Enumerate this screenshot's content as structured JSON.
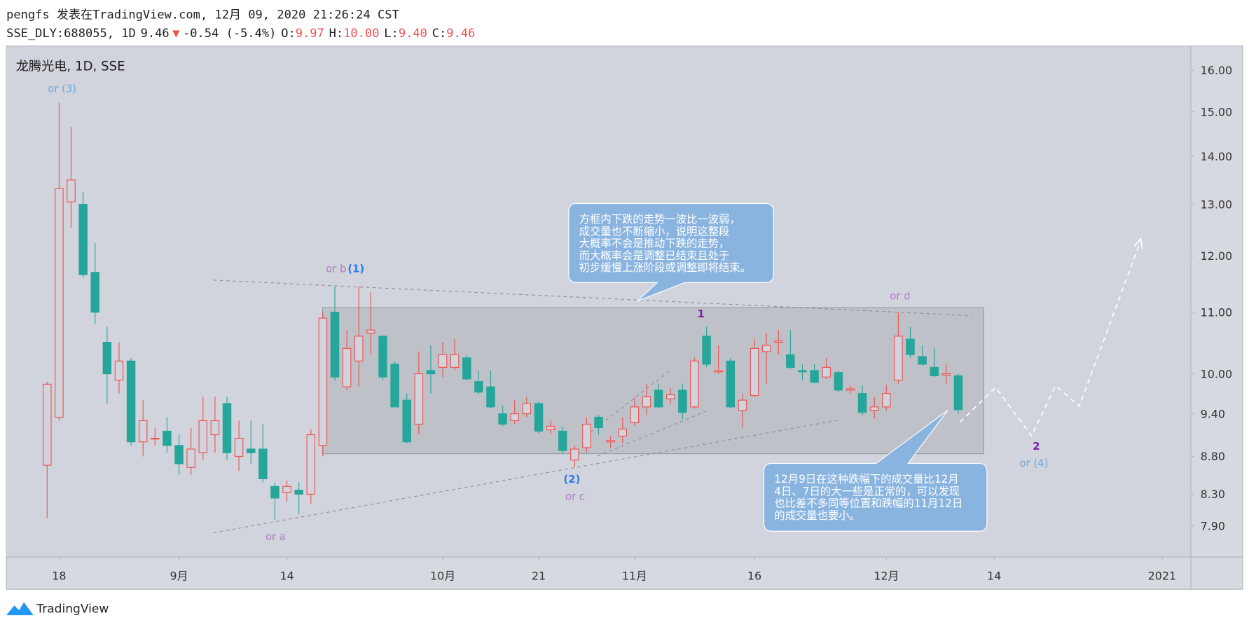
{
  "header": {
    "line1": "pengfs 发表在TradingView.com, 12月 09, 2020 21:26:24 CST",
    "symbol": "SSE_DLY:688055, 1D",
    "last": "9.46",
    "arrow": "▼",
    "change": "-0.54 (-5.4%)",
    "ohlc": [
      {
        "label": "O:",
        "value": "9.97"
      },
      {
        "label": "H:",
        "value": "10.00"
      },
      {
        "label": "L:",
        "value": "9.40"
      },
      {
        "label": "C:",
        "value": "9.46"
      }
    ]
  },
  "chart_data": {
    "type": "candlestick",
    "title": "龙腾光电, 1D, SSE",
    "up_color": "#ef5350",
    "down_color": "#26a69a",
    "log_scale": true,
    "categories": [
      null,
      null,
      null,
      null,
      null,
      null,
      null,
      null,
      null,
      null,
      null,
      null,
      null,
      null,
      null,
      null,
      null,
      null,
      null,
      null,
      null,
      null,
      null,
      null,
      null,
      null,
      null,
      null,
      null,
      null,
      null,
      null,
      null,
      null,
      null,
      null,
      null,
      null,
      null,
      null,
      null,
      null,
      null,
      null,
      null,
      null,
      null,
      null,
      null,
      null,
      null,
      null,
      null,
      null,
      null,
      null,
      null,
      null,
      null,
      null,
      null,
      null,
      null,
      null,
      null,
      null,
      null,
      null,
      null,
      null,
      null,
      null,
      null,
      null,
      null,
      null,
      null
    ],
    "open": [
      8.68,
      9.35,
      13.05,
      13.0,
      11.7,
      10.5,
      9.9,
      10.2,
      9.0,
      9.05,
      9.15,
      8.95,
      8.65,
      8.85,
      9.1,
      9.55,
      8.8,
      8.9,
      8.9,
      8.4,
      8.32,
      8.35,
      8.3,
      8.95,
      11.0,
      9.8,
      10.2,
      10.65,
      10.6,
      10.15,
      9.6,
      9.25,
      10.05,
      10.1,
      10.1,
      10.25,
      9.88,
      9.8,
      9.4,
      9.3,
      9.4,
      9.55,
      9.17,
      9.15,
      8.75,
      8.92,
      9.35,
      9.0,
      9.08,
      9.27,
      9.5,
      9.75,
      9.62,
      9.75,
      9.5,
      10.6,
      10.03,
      10.2,
      9.45,
      9.67,
      10.35,
      10.5,
      10.3,
      10.05,
      10.05,
      9.95,
      10.02,
      9.75,
      9.7,
      9.45,
      9.5,
      9.9,
      10.55,
      10.27,
      10.1,
      9.98,
      9.97
    ],
    "high": [
      9.88,
      15.22,
      14.66,
      13.25,
      12.24,
      10.75,
      10.5,
      10.25,
      9.6,
      9.2,
      9.35,
      9.1,
      9.2,
      9.65,
      9.65,
      9.65,
      9.3,
      9.3,
      9.25,
      8.45,
      8.48,
      8.45,
      9.18,
      11.0,
      11.45,
      10.7,
      11.45,
      11.35,
      10.6,
      10.2,
      9.7,
      10.35,
      10.45,
      10.5,
      10.55,
      10.3,
      10.05,
      10.05,
      9.52,
      9.6,
      9.65,
      9.58,
      9.3,
      9.22,
      8.95,
      9.35,
      9.38,
      9.08,
      9.35,
      9.65,
      9.85,
      9.85,
      9.78,
      9.85,
      10.25,
      10.75,
      10.45,
      10.25,
      9.7,
      10.55,
      10.65,
      10.7,
      10.7,
      10.15,
      10.15,
      10.25,
      10.05,
      9.82,
      9.82,
      9.65,
      9.83,
      11.0,
      10.75,
      10.45,
      10.4,
      10.15,
      10.0
    ],
    "low": [
      8.0,
      9.3,
      12.54,
      11.6,
      10.8,
      9.55,
      9.7,
      8.95,
      8.8,
      8.95,
      8.85,
      8.55,
      8.55,
      8.75,
      8.85,
      8.75,
      8.6,
      8.7,
      8.45,
      7.97,
      8.2,
      8.05,
      8.18,
      8.8,
      9.9,
      9.75,
      9.8,
      10.3,
      9.9,
      9.5,
      8.98,
      9.1,
      9.7,
      9.95,
      10.05,
      9.9,
      9.68,
      9.48,
      9.22,
      9.25,
      9.35,
      9.12,
      9.12,
      8.83,
      8.65,
      8.85,
      9.1,
      8.92,
      8.98,
      9.22,
      9.38,
      9.48,
      9.55,
      9.32,
      9.48,
      10.1,
      10.0,
      9.48,
      9.2,
      9.65,
      9.85,
      10.3,
      10.08,
      9.9,
      9.85,
      9.92,
      9.72,
      9.7,
      9.38,
      9.33,
      9.45,
      9.85,
      10.25,
      10.13,
      9.95,
      9.85,
      9.4
    ],
    "close": [
      9.84,
      13.32,
      13.5,
      11.66,
      11.0,
      10.0,
      10.2,
      9.0,
      9.3,
      9.05,
      8.95,
      8.7,
      8.9,
      9.3,
      9.3,
      8.85,
      9.05,
      8.85,
      8.5,
      8.25,
      8.4,
      8.3,
      9.1,
      10.9,
      9.95,
      10.4,
      10.6,
      10.7,
      9.95,
      9.5,
      9.0,
      10.0,
      10.0,
      10.3,
      10.3,
      9.92,
      9.72,
      9.5,
      9.25,
      9.4,
      9.55,
      9.15,
      9.22,
      8.88,
      8.9,
      9.25,
      9.2,
      9.02,
      9.18,
      9.5,
      9.65,
      9.5,
      9.68,
      9.42,
      10.2,
      10.15,
      10.05,
      9.5,
      9.6,
      10.4,
      10.45,
      10.52,
      10.1,
      10.03,
      9.87,
      10.1,
      9.75,
      9.77,
      9.42,
      9.5,
      9.7,
      10.6,
      10.3,
      10.15,
      9.97,
      10.0,
      9.46
    ],
    "xlim": [
      -3.4,
      95.4
    ],
    "xticks": [
      {
        "value": 1,
        "label": "18"
      },
      {
        "value": 11,
        "label": "9月"
      },
      {
        "value": 20,
        "label": "14"
      },
      {
        "value": 33,
        "label": "10月"
      },
      {
        "value": 41,
        "label": "21"
      },
      {
        "value": 49,
        "label": "11月"
      },
      {
        "value": 59,
        "label": "16"
      },
      {
        "value": 70,
        "label": "12月"
      },
      {
        "value": 79,
        "label": "14"
      },
      {
        "value": 93,
        "label": "2021"
      }
    ],
    "ylim": [
      7.53,
      16.59
    ],
    "yticks": [
      {
        "value": 16,
        "label": "16.00"
      },
      {
        "value": 15,
        "label": "15.00"
      },
      {
        "value": 14,
        "label": "14.00"
      },
      {
        "value": 13,
        "label": "13.00"
      },
      {
        "value": 12,
        "label": "12.00"
      },
      {
        "value": 11,
        "label": "11.00"
      },
      {
        "value": 10,
        "label": "10.00"
      },
      {
        "value": 9.4,
        "label": "9.40"
      },
      {
        "value": 8.8,
        "label": "8.80"
      },
      {
        "value": 8.3,
        "label": "8.30"
      },
      {
        "value": 7.9,
        "label": "7.90"
      }
    ],
    "annotations": {
      "wave_labels": [
        "or (3)",
        "or b",
        "(1)",
        "1",
        "or d",
        "(2)",
        "or c",
        "or a",
        "2",
        "or (4)"
      ],
      "callout_1": [
        "方框内下跌的走势一波比一波弱，",
        "成交量也不断缩小，说明这整段",
        "大概率不会是推动下跌的走势，",
        "而大概率会是调整已结束且处于",
        "初步缓慢上涨阶段或调整即将结束。"
      ],
      "callout_2": [
        "12月9日在这种跌幅下的成交量比12月",
        "4日、7日的大一些是正常的，可以发现",
        "也比差不多同等位置和跌幅的11月12日",
        "的成交量也要小。"
      ]
    }
  },
  "footer": {
    "brand": "TradingView"
  }
}
